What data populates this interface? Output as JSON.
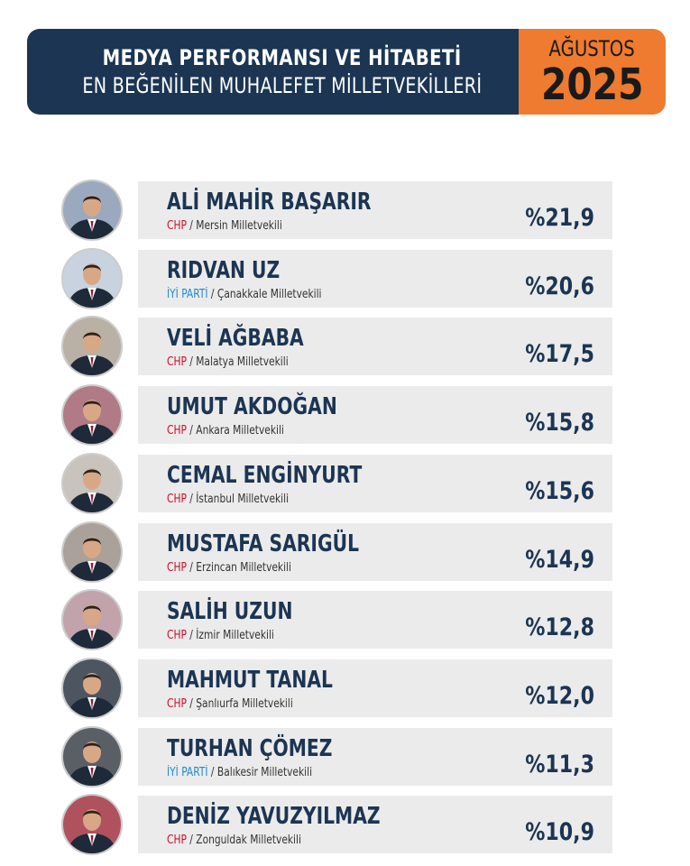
{
  "header": {
    "line1": "MEDYA PERFORMANSI VE HİTABETİ",
    "line2": "EN BEĞENİLEN MUHALEFET MİLLETVEKİLLERİ",
    "month": "AĞUSTOS",
    "year": "2025"
  },
  "colors": {
    "navy": "#1b3553",
    "orange": "#ee7b2f",
    "chp": "#c8102e",
    "iyi": "#1f8bc9",
    "row_bg": "#ebebeb"
  },
  "separator": " / ",
  "deputies": [
    {
      "name": "ALİ MAHİR BAŞARIR",
      "party": "CHP",
      "district": "Mersin Milletvekili",
      "percent": "%21,9",
      "value": 21.9
    },
    {
      "name": "RIDVAN UZ",
      "party": "İYİ PARTİ",
      "district": "Çanakkale Milletvekili",
      "percent": "%20,6",
      "value": 20.6
    },
    {
      "name": "VELİ AĞBABA",
      "party": "CHP",
      "district": "Malatya Milletvekili",
      "percent": "%17,5",
      "value": 17.5
    },
    {
      "name": "UMUT AKDOĞAN",
      "party": "CHP",
      "district": "Ankara Milletvekili",
      "percent": "%15,8",
      "value": 15.8
    },
    {
      "name": "CEMAL ENGİNYURT",
      "party": "CHP",
      "district": "İstanbul Milletvekili",
      "percent": "%15,6",
      "value": 15.6
    },
    {
      "name": "MUSTAFA SARIGÜL",
      "party": "CHP",
      "district": "Erzincan Milletvekili",
      "percent": "%14,9",
      "value": 14.9
    },
    {
      "name": "SALİH UZUN",
      "party": "CHP",
      "district": "İzmir Milletvekili",
      "percent": "%12,8",
      "value": 12.8
    },
    {
      "name": "MAHMUT TANAL",
      "party": "CHP",
      "district": "Şanlıurfa Milletvekili",
      "percent": "%12,0",
      "value": 12.0
    },
    {
      "name": "TURHAN ÇÖMEZ",
      "party": "İYİ PARTİ",
      "district": "Balıkesir Milletvekili",
      "percent": "%11,3",
      "value": 11.3
    },
    {
      "name": "DENİZ YAVUZYILMAZ",
      "party": "CHP",
      "district": "Zonguldak Milletvekili",
      "percent": "%10,9",
      "value": 10.9
    }
  ]
}
